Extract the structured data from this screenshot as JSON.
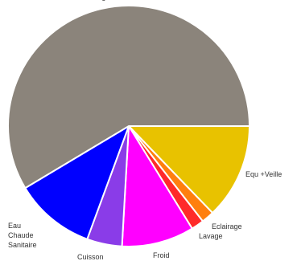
{
  "chart_data": {
    "type": "pie",
    "categories": [
      "Equ +Veille",
      "Eclairage",
      "Lavage",
      "Froid",
      "Cuisson",
      "Eau Chaude Sanitaire",
      "Chauffage"
    ],
    "values": [
      12.8,
      1.7,
      1.7,
      9.7,
      4.7,
      10.8,
      58.6
    ],
    "colors": [
      "#e8c200",
      "#ff7f0e",
      "#ff2a2a",
      "#ff00ff",
      "#8a3ce8",
      "#0000ff",
      "#8b847b"
    ]
  }
}
